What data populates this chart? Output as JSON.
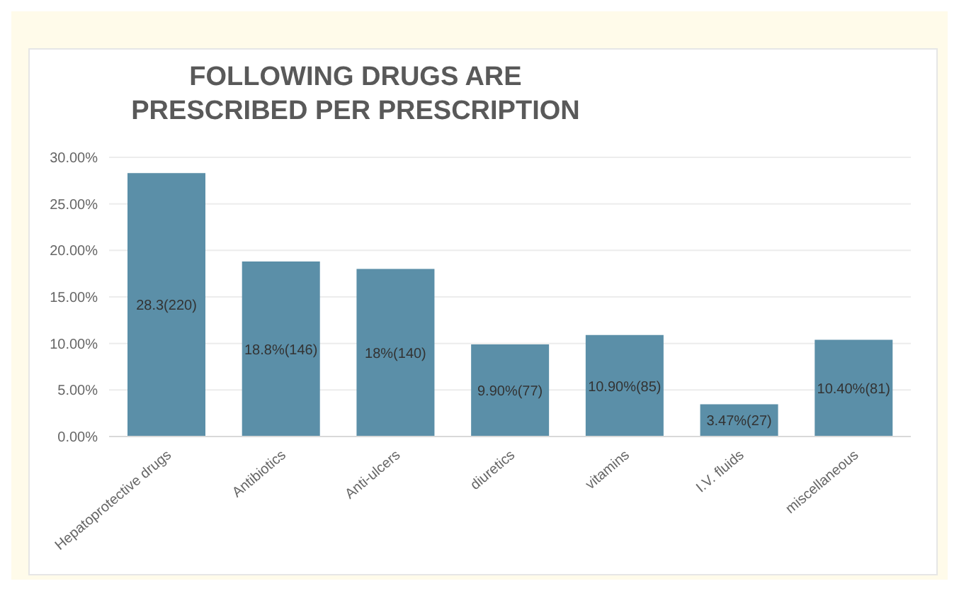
{
  "chart_data": {
    "type": "bar",
    "title": "FOLLOWING DRUGS ARE PRESCRIBED PER PRESCRIPTION",
    "categories": [
      "Hepatoprotective drugs",
      "Antibiotics",
      "Anti-ulcers",
      "diuretics",
      "vitamins",
      "I.V. fluids",
      "miscellaneous"
    ],
    "values": [
      28.3,
      18.8,
      18,
      9.9,
      10.9,
      3.47,
      10.4
    ],
    "value_labels": [
      "28.3(220)",
      "18.8%(146)",
      "18%(140)",
      "9.90%(77)",
      "10.90%(85)",
      "3.47%(27)",
      "10.40%(81)"
    ],
    "color": "#5b8fa8",
    "ylim": [
      0,
      30
    ],
    "yticks": [
      {
        "value": 0,
        "label": "0.00%"
      },
      {
        "value": 5,
        "label": "5.00%"
      },
      {
        "value": 10,
        "label": "10.00%"
      },
      {
        "value": 15,
        "label": "15.00%"
      },
      {
        "value": 20,
        "label": "20.00%"
      },
      {
        "value": 25,
        "label": "25.00%"
      },
      {
        "value": 30,
        "label": "30.00%"
      }
    ],
    "grid": "y"
  }
}
